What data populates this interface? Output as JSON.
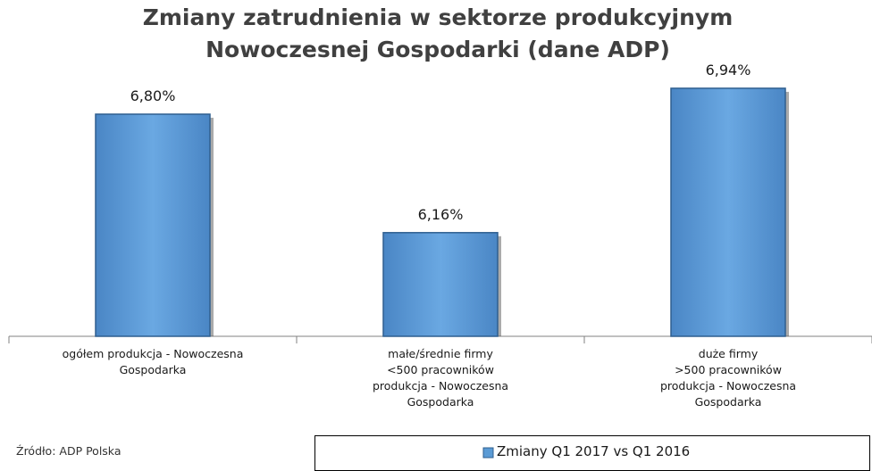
{
  "chart_data": {
    "type": "bar",
    "title": "Zmiany zatrudnienia w sektorze produkcyjnym\nNowoczesnej Gospodarki (dane ADP)",
    "categories": [
      "ogółem produkcja - Nowoczesna\nGospodarka",
      "małe/średnie firmy\n<500 pracowników\nprodukcja - Nowoczesna\nGospodarka",
      "duże firmy\n>500 pracowników\nprodukcja - Nowoczesna\nGospodarka"
    ],
    "series": [
      {
        "name": "Zmiany Q1 2017 vs Q1 2016",
        "color": "#5b9bd5",
        "values": [
          6.8,
          6.16,
          6.94
        ],
        "value_labels": [
          "6,80%",
          "6,16%",
          "6,94%"
        ]
      }
    ],
    "ylim": [
      5.6,
      7.0
    ],
    "source": "Źródło: ADP Polska"
  }
}
